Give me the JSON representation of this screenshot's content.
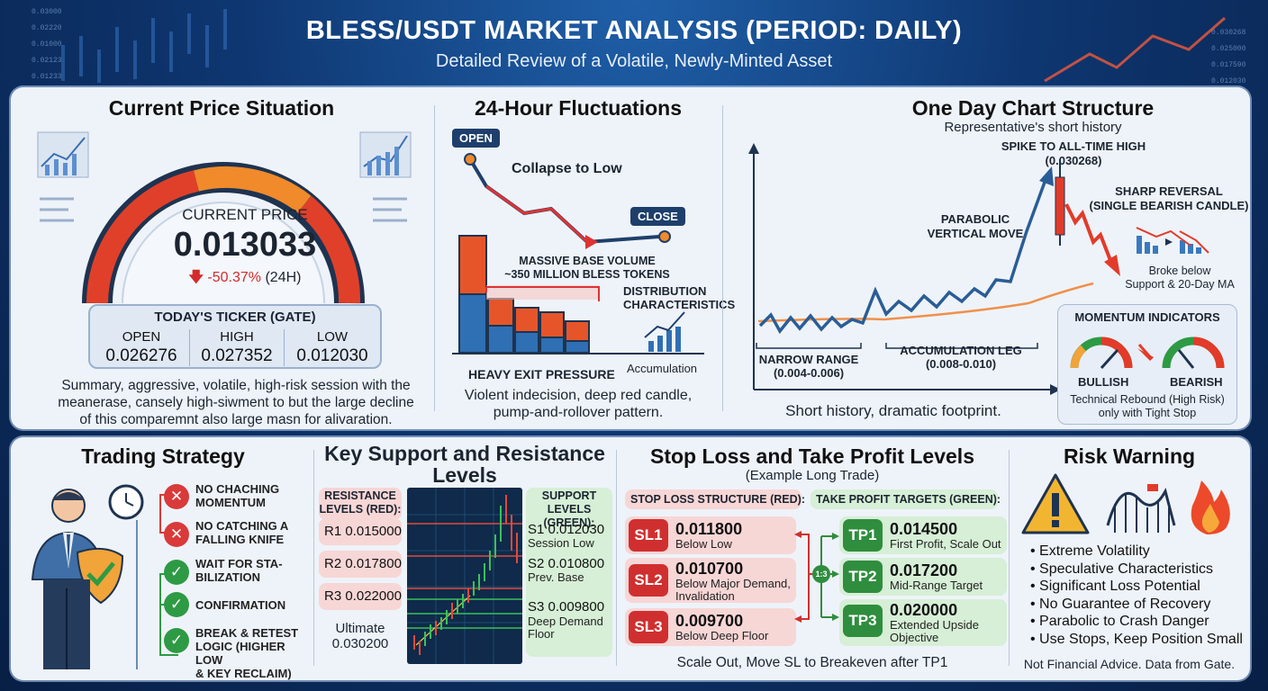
{
  "header": {
    "title": "BLESS/USDT MARKET ANALYSIS (PERIOD: DAILY)",
    "subtitle": "Detailed Review of a Volatile, Newly-Minted Asset"
  },
  "current_price": {
    "title": "Current Price Situation",
    "label": "CURRENT PRICE",
    "value": "0.013033",
    "change": "-50.37%",
    "change_period": "(24H)",
    "ticker_title": "TODAY'S TICKER (GATE)",
    "open_label": "OPEN",
    "open_value": "0.026276",
    "high_label": "HIGH",
    "high_value": "0.027352",
    "low_label": "LOW",
    "low_value": "0.012030",
    "summary_1": "Summary, aggressive, volatile, high-risk session with the",
    "summary_2": "meanerase, cansely high-siwment to but the large decline",
    "summary_3": "of this comparemnt also large masn for alivaration.",
    "colors": {
      "gauge_red": "#e0402a",
      "gauge_orange": "#f08a2a",
      "gauge_dark": "#1e3350"
    }
  },
  "fluctuations": {
    "title": "24-Hour Fluctuations",
    "open_tag": "OPEN",
    "close_tag": "CLOSE",
    "collapse_label": "Collapse to Low",
    "volume_1": "MASSIVE BASE VOLUME",
    "volume_2": "~350 MILLION BLESS TOKENS",
    "distribution_1": "DISTRIBUTION",
    "distribution_2": "CHARACTERISTICS",
    "exit_pressure": "HEAVY EXIT PRESSURE",
    "accumulation": "Accumulation",
    "caption_1": "Violent indecision, deep red candle,",
    "caption_2": "pump-and-rollover pattern."
  },
  "structure": {
    "title": "One Day Chart Structure",
    "subtitle": "Representative's short history",
    "spike_1": "SPIKE TO ALL-TIME HIGH",
    "spike_2": "(0.030268)",
    "reversal_1": "SHARP REVERSAL",
    "reversal_2": "(SINGLE BEARISH CANDLE)",
    "parabolic_1": "PARABOLIC",
    "parabolic_2": "VERTICAL MOVE",
    "broke_1": "Broke below",
    "broke_2": "Support & 20-Day MA",
    "narrow_1": "NARROW RANGE",
    "narrow_2": "(0.004-0.006)",
    "accum_1": "ACCUMULATION LEG",
    "accum_2": "(0.008-0.010)",
    "caption": "Short history, dramatic footprint.",
    "momentum_title": "MOMENTUM INDICATORS",
    "bullish": "BULLISH",
    "bearish": "BEARISH",
    "rebound_1": "Technical Rebound (High Risk)",
    "rebound_2": "only with Tight Stop"
  },
  "strategy": {
    "title": "Trading Strategy",
    "items": [
      {
        "line1": "NO CHACHING",
        "line2": "MOMENTUM",
        "status": "no",
        "mark": "✕"
      },
      {
        "line1": "NO CATCHING A",
        "line2": "FALLING KNIFE",
        "status": "no",
        "mark": "✕"
      },
      {
        "line1": "WAIT FOR STA-",
        "line2": "BILIZATION",
        "status": "yes",
        "mark": "✓"
      },
      {
        "line1": "CONFIRMATION",
        "line2": "",
        "status": "yes",
        "mark": "✓"
      },
      {
        "line1": "BREAK & RETEST",
        "line2": "LOGIC (HIGHER LOW",
        "line3": "& KEY RECLAIM)",
        "status": "yes",
        "mark": "✓"
      }
    ]
  },
  "levels": {
    "title_1": "Key Support and Resistance",
    "title_2": "Levels",
    "resistance_title_1": "RESISTANCE",
    "resistance_title_2": "LEVELS (RED):",
    "r1": "R1 0.015000",
    "r2": "R2 0.017800",
    "r3": "R3 0.022000",
    "ultimate_1": "Ultimate",
    "ultimate_2": "0.030200",
    "support_title_1": "SUPPORT",
    "support_title_2": "LEVELS (GREEN):",
    "s1": "S1 0.012030",
    "s1_note": "Session Low",
    "s2": "S2 0.010800",
    "s2_note": "Prev. Base",
    "s3": "S3 0.009800",
    "s3_note_1": "Deep Demand",
    "s3_note_2": "Floor"
  },
  "stops": {
    "title": "Stop Loss and Take Profit Levels",
    "subtitle": "(Example Long Trade)",
    "sl_title": "STOP LOSS STRUCTURE (RED):",
    "tp_title": "TAKE PROFIT TARGETS (GREEN):",
    "connector": "1:3",
    "sl": [
      {
        "tag": "SL1",
        "value": "0.011800",
        "note1": "Below Low",
        "note2": ""
      },
      {
        "tag": "SL2",
        "value": "0.010700",
        "note1": "Below Major Demand,",
        "note2": "Invalidation"
      },
      {
        "tag": "SL3",
        "value": "0.009700",
        "note1": "Below Deep Floor",
        "note2": ""
      }
    ],
    "tp": [
      {
        "tag": "TP1",
        "value": "0.014500",
        "note1": "First Profit, Scale Out",
        "note2": ""
      },
      {
        "tag": "TP2",
        "value": "0.017200",
        "note1": "Mid-Range Target",
        "note2": ""
      },
      {
        "tag": "TP3",
        "value": "0.020000",
        "note1": "Extended Upside",
        "note2": "Objective"
      }
    ],
    "footer": "Scale Out, Move SL to Breakeven after TP1"
  },
  "risk": {
    "title": "Risk Warning",
    "items": [
      "Extreme Volatility",
      "Speculative Characteristics",
      "Significant Loss Potential",
      "No Guarantee of Recovery",
      "Parabolic to Crash Danger",
      "Use Stops, Keep Position Small"
    ],
    "disclaimer": "Not Financial Advice. Data from Gate."
  }
}
